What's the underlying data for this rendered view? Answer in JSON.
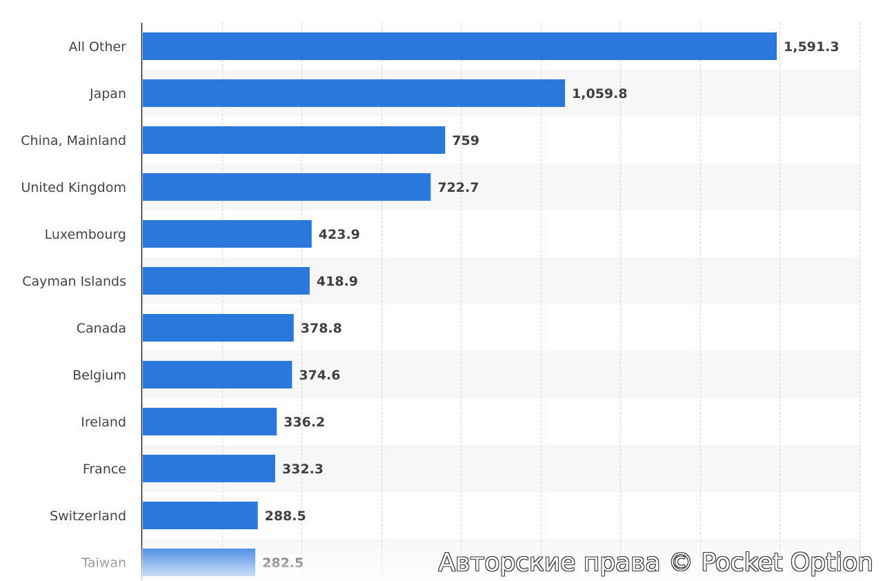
{
  "chart_data": {
    "type": "bar",
    "orientation": "horizontal",
    "categories": [
      "All Other",
      "Japan",
      "China, Mainland",
      "United Kingdom",
      "Luxembourg",
      "Cayman Islands",
      "Canada",
      "Belgium",
      "Ireland",
      "France",
      "Switzerland",
      "Taiwan"
    ],
    "values": [
      1591.3,
      1059.8,
      759,
      722.7,
      423.9,
      418.9,
      378.8,
      374.6,
      336.2,
      332.3,
      288.5,
      282.5
    ],
    "value_labels": [
      "1,591.3",
      "1,059.8",
      "759",
      "722.7",
      "423.9",
      "418.9",
      "378.8",
      "374.6",
      "336.2",
      "332.3",
      "288.5",
      "282.5"
    ],
    "title": "",
    "xlabel": "",
    "ylabel": "",
    "xlim": [
      0,
      1800
    ],
    "grid": "vertical dashed",
    "legend": "none",
    "bar_color": "#2b78dd",
    "stripe_color": "#f7f7f7"
  },
  "watermark": "Авторские права © Pocket Option"
}
